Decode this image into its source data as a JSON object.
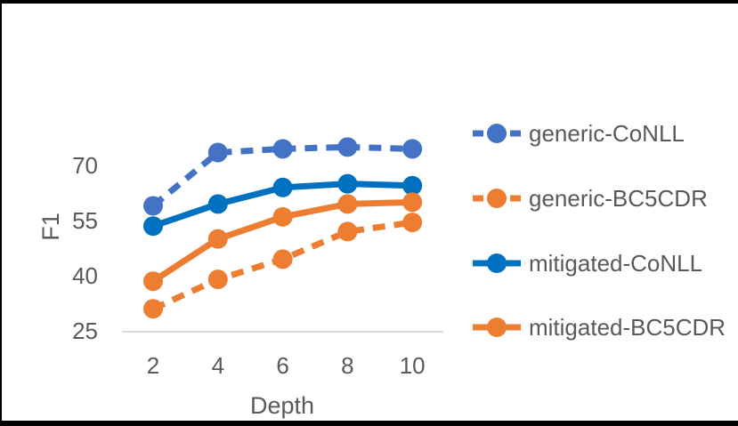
{
  "figure": {
    "background": "#FFFFFF",
    "frame_border_color": "#000000"
  },
  "chart_data": {
    "type": "line",
    "title": "",
    "xlabel": "Depth",
    "ylabel": "F1",
    "x": [
      2,
      4,
      6,
      8,
      10
    ],
    "x_tick_labels": [
      "2",
      "4",
      "6",
      "8",
      "10"
    ],
    "y_ticks": [
      25,
      40,
      55,
      70
    ],
    "y_tick_labels": [
      "25",
      "40",
      "55",
      "70"
    ],
    "xlim": [
      1,
      11
    ],
    "ylim": [
      25,
      85
    ],
    "grid": "baseline-only",
    "legend_position": "right",
    "text_color": "#595959",
    "gridline_color": "#D9D9D9",
    "series": [
      {
        "name": "generic-CoNLL",
        "color": "#4472C4",
        "style": "dashed",
        "marker": "circle",
        "values": [
          59,
          73.5,
          74.5,
          75,
          74.5
        ]
      },
      {
        "name": "generic-BC5CDR",
        "color": "#ED7D31",
        "style": "dashed",
        "marker": "circle",
        "values": [
          31,
          39,
          44.5,
          52,
          54.5
        ]
      },
      {
        "name": "mitigated-CoNLL",
        "color": "#0070C0",
        "style": "solid",
        "marker": "circle",
        "values": [
          53.5,
          59.5,
          64,
          65,
          64.5
        ]
      },
      {
        "name": "mitigated-BC5CDR",
        "color": "#ED7D31",
        "style": "solid",
        "marker": "circle",
        "values": [
          38.5,
          50,
          56,
          59.5,
          60
        ]
      }
    ]
  }
}
